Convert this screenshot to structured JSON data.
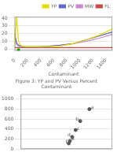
{
  "chart_data": [
    {
      "type": "line",
      "title": "Figure 3: YP and PV Versus Percent Contaminant",
      "xlabel": "Contaminant",
      "xlim": [
        0,
        1500
      ],
      "xticks": [
        0,
        200,
        400,
        600,
        800,
        1000,
        1200,
        1400
      ],
      "ylim": [
        -2,
        42
      ],
      "yticks": [
        0,
        10,
        20,
        30,
        40
      ],
      "grid": "y",
      "legend": "upper right",
      "series": [
        {
          "name": "YP",
          "color": "#dddd00",
          "x": [
            0,
            30,
            60,
            90,
            120,
            180,
            250,
            350,
            500,
            700,
            900,
            1100,
            1300,
            1500
          ],
          "values": [
            3,
            42,
            10,
            5,
            3.5,
            3,
            3,
            3,
            3,
            4,
            7,
            12,
            18,
            26
          ]
        },
        {
          "name": "PV",
          "color": "#6666cc",
          "x": [
            0,
            30,
            60,
            90,
            120,
            180,
            250,
            350,
            500,
            700,
            900,
            1100,
            1300,
            1500
          ],
          "values": [
            20,
            8,
            5,
            4,
            3.5,
            3,
            3,
            3,
            3.5,
            5,
            7,
            12,
            17,
            22
          ]
        },
        {
          "name": "MW",
          "color": "#cc88cc",
          "x": [
            0,
            30,
            60,
            90,
            120,
            180,
            250,
            350,
            500,
            700,
            900,
            1100,
            1300,
            1500
          ],
          "values": [
            16,
            6,
            4,
            3.5,
            3,
            3,
            3,
            3,
            3.5,
            5,
            7,
            10,
            14,
            19
          ]
        },
        {
          "name": "FL",
          "color": "#cc4444",
          "x": [
            0,
            200,
            500,
            800,
            1100,
            1500
          ],
          "values": [
            2,
            2,
            2,
            2,
            2,
            2
          ]
        },
        {
          "type": "scatter",
          "marker": "square",
          "color": "#00bb00",
          "x": [
            60
          ],
          "values": [
            -1
          ]
        }
      ]
    },
    {
      "type": "scatter",
      "xlim": [
        0,
        8
      ],
      "xticks": [],
      "ylim": [
        0,
        1100
      ],
      "yticks": [
        0,
        200,
        400,
        600,
        800,
        1000
      ],
      "grid": "y",
      "tick_labels": "y",
      "series": [
        {
          "color": "#555555",
          "x": [
            6.0,
            5.2,
            4.8,
            4.5,
            4.3,
            4.2
          ],
          "values": [
            800,
            560,
            380,
            240,
            160,
            110
          ],
          "annotations": [
            "a",
            "b",
            "c",
            "d",
            "e",
            "f"
          ]
        }
      ]
    }
  ]
}
